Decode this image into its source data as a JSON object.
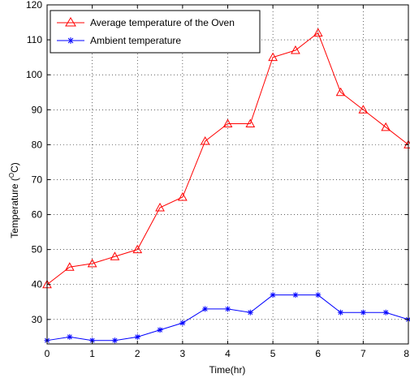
{
  "chart_data": {
    "type": "line",
    "xlabel": "Time(hr)",
    "ylabel_main": "Temperature (",
    "ylabel_sup": "O",
    "ylabel_tail": "C)",
    "xlim": [
      0,
      8
    ],
    "ylim": [
      23,
      120
    ],
    "xticks": [
      0,
      1,
      2,
      3,
      4,
      5,
      6,
      7,
      8
    ],
    "yticks": [
      30,
      40,
      50,
      60,
      70,
      80,
      90,
      100,
      110,
      120
    ],
    "grid": true,
    "legend_position": "top-left",
    "x": [
      0,
      0.5,
      1,
      1.5,
      2,
      2.5,
      3,
      3.5,
      4,
      4.5,
      5,
      5.5,
      6,
      6.5,
      7,
      7.5,
      8
    ],
    "series": [
      {
        "name": "Average temperature of the Oven",
        "color": "#ff0000",
        "marker": "triangle",
        "values": [
          40,
          45,
          46,
          48,
          50,
          62,
          65,
          81,
          86,
          86,
          105,
          107,
          112,
          95,
          90,
          85,
          80
        ]
      },
      {
        "name": "Ambient temperature",
        "color": "#0000ff",
        "marker": "asterisk",
        "values": [
          24,
          25,
          24,
          24,
          25,
          27,
          29,
          33,
          33,
          32,
          37,
          37,
          37,
          32,
          32,
          32,
          30
        ]
      }
    ]
  }
}
